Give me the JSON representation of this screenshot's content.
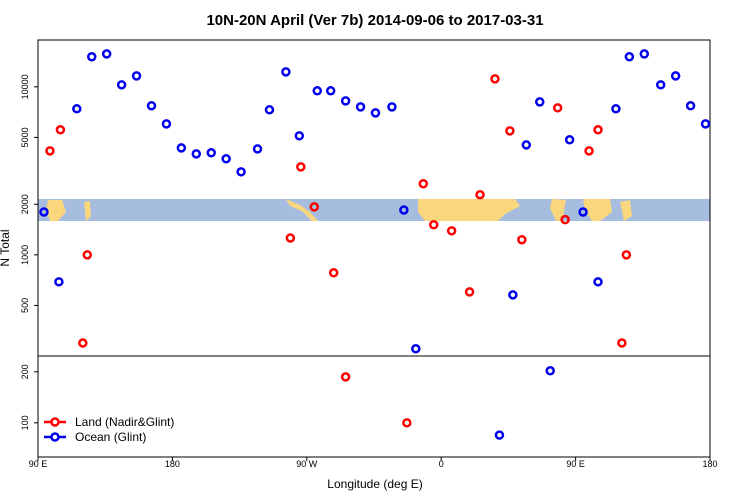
{
  "chart_data": {
    "type": "scatter",
    "title": "10N-20N April (Ver 7b)   2014-09-06 to 2017-03-31",
    "x_label": "Longitude (deg E)",
    "y_label": "N Total",
    "xlim": [
      90,
      540
    ],
    "xticks": [
      {
        "value": 90,
        "label": "90 E"
      },
      {
        "value": 180,
        "label": "180"
      },
      {
        "value": 270,
        "label": "90 W"
      },
      {
        "value": 360,
        "label": "0"
      },
      {
        "value": 450,
        "label": "90 E"
      },
      {
        "value": 540,
        "label": "180"
      }
    ],
    "ylim": [
      250,
      19000
    ],
    "log_y": true,
    "yticks": [
      500,
      1000,
      2000,
      5000,
      10000
    ],
    "y2lim": [
      33,
      231
    ],
    "y2ticks": [
      100,
      200
    ],
    "legend": "bottom-left",
    "series": [
      {
        "name": "Land (Nadir&Glint)",
        "color": "#ff0000",
        "x": [
          98,
          105,
          123,
          120,
          266,
          259,
          275,
          288,
          296,
          337,
          348,
          355,
          367,
          379,
          386,
          396,
          406,
          414,
          438,
          443,
          459,
          465,
          484,
          481
        ],
        "values": [
          4160,
          5550,
          1000,
          299,
          3340,
          1260,
          1930,
          782,
          190,
          100,
          2650,
          1510,
          1390,
          602,
          2280,
          11150,
          5470,
          1230,
          7500,
          1620,
          4160,
          5550,
          1000,
          299
        ]
      },
      {
        "name": "Ocean (Glint)",
        "color": "#0000ee",
        "x": [
          94,
          104,
          116,
          126,
          136,
          146,
          156,
          166,
          176,
          186,
          196,
          206,
          216,
          226,
          237,
          245,
          256,
          265,
          277,
          286,
          296,
          306,
          316,
          327,
          335,
          343,
          399,
          408,
          417,
          426,
          433,
          446,
          455,
          465,
          477,
          486,
          496,
          507,
          517,
          527,
          537
        ],
        "values": [
          1800,
          691,
          7400,
          15100,
          15700,
          10280,
          11620,
          7710,
          6020,
          4330,
          3990,
          4050,
          3730,
          3120,
          4270,
          7300,
          12280,
          5110,
          9470,
          9470,
          8250,
          7600,
          7000,
          7600,
          1850,
          276,
          76,
          578,
          4510,
          8140,
          202,
          4840,
          1800,
          691,
          7400,
          15100,
          15700,
          10280,
          11620,
          7710,
          6020
        ]
      }
    ]
  }
}
